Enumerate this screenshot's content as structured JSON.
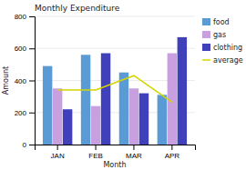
{
  "chart_data": {
    "type": "bar",
    "title": "Monthly Expenditure",
    "xlabel": "Month",
    "ylabel": "Amount",
    "categories": [
      "JAN",
      "FEB",
      "MAR",
      "APR"
    ],
    "series": [
      {
        "name": "food",
        "color": "#5b9bd5",
        "values": [
          490,
          560,
          450,
          310
        ]
      },
      {
        "name": "gas",
        "color": "#c8a0e0",
        "values": [
          350,
          240,
          350,
          570
        ]
      },
      {
        "name": "clothing",
        "color": "#4040bb",
        "values": [
          220,
          570,
          320,
          670
        ]
      },
      {
        "name": "average",
        "type": "line",
        "color": "#d4d400",
        "values": [
          340,
          340,
          430,
          265
        ]
      }
    ],
    "ylim": [
      0,
      800
    ],
    "yticks": [
      0,
      200,
      400,
      600,
      800
    ],
    "grid": true,
    "legend": "right"
  }
}
